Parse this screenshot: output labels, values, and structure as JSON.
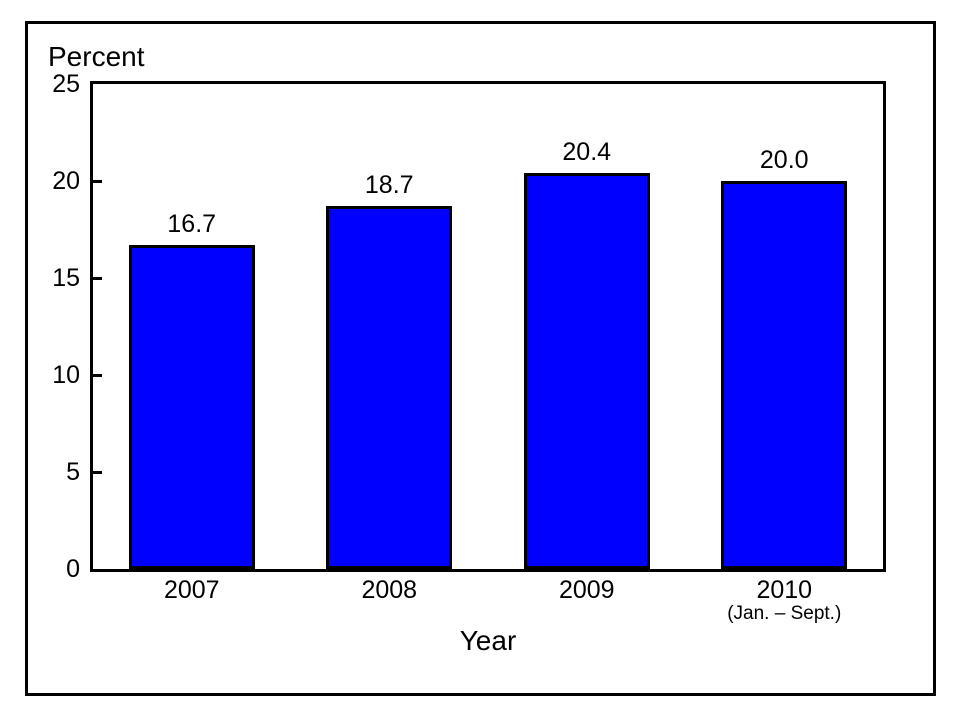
{
  "chart_data": {
    "type": "bar",
    "title": "",
    "ylabel": "Percent",
    "xlabel": "Year",
    "categories": [
      "2007",
      "2008",
      "2009",
      "2010"
    ],
    "category_sublabels": [
      "",
      "",
      "",
      "(Jan. – Sept.)"
    ],
    "values": [
      16.7,
      18.7,
      20.4,
      20.0
    ],
    "value_labels": [
      "16.7",
      "18.7",
      "20.4",
      "20.0"
    ],
    "ylim": [
      0,
      25
    ],
    "yticks": [
      0,
      5,
      10,
      15,
      20,
      25
    ],
    "grid": false,
    "legend": "none",
    "bar_color": "#0000ff",
    "bar_border_color": "#000000",
    "axis_color": "#000000",
    "background_color": "#ffffff"
  }
}
